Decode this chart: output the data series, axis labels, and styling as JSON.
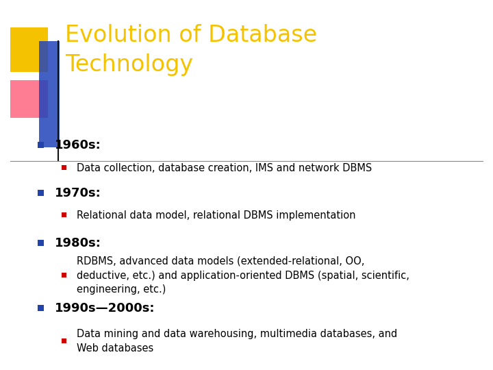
{
  "title_line1": "Evolution of Database",
  "title_line2": "Technology",
  "title_color": "#F5C200",
  "background_color": "#FFFFFF",
  "bullet_color": "#2244AA",
  "subbullet_color": "#CC0000",
  "text_color": "#000000",
  "items": [
    {
      "level": 1,
      "text": "1960s:"
    },
    {
      "level": 2,
      "text": "Data collection, database creation, IMS and network DBMS"
    },
    {
      "level": 1,
      "text": "1970s:"
    },
    {
      "level": 2,
      "text": "Relational data model, relational DBMS implementation"
    },
    {
      "level": 1,
      "text": "1980s:"
    },
    {
      "level": 2,
      "text": "RDBMS, advanced data models (extended-relational, OO,\ndeductive, etc.) and application-oriented DBMS (spatial, scientific,\nengineering, etc.)"
    },
    {
      "level": 1,
      "text": "1990s—2000s:"
    },
    {
      "level": 2,
      "text": "Data mining and data warehousing, multimedia databases, and\nWeb databases"
    }
  ],
  "level1_font": 13,
  "level2_font": 10.5,
  "title_fontsize": 24,
  "fig_width": 7.2,
  "fig_height": 5.4,
  "dpi": 100
}
